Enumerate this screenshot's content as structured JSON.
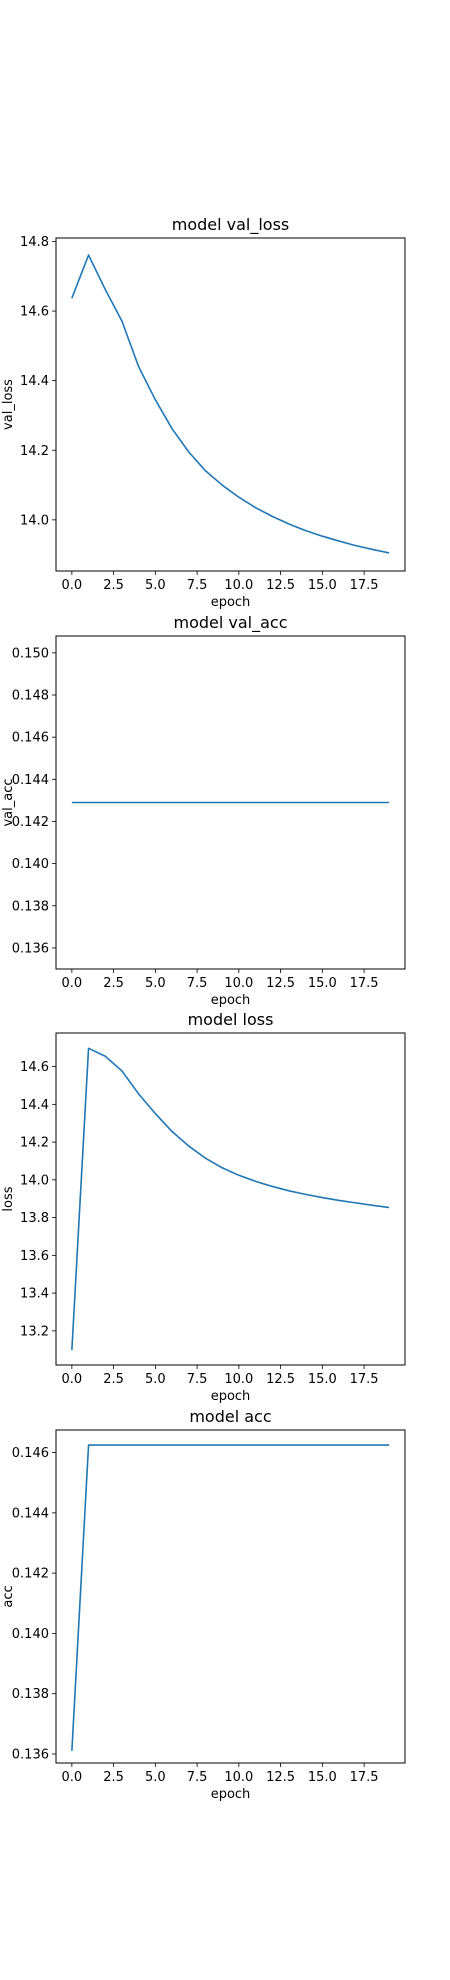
{
  "colors": {
    "series": "#1f77b4"
  },
  "chart_data": [
    {
      "type": "line",
      "title": "model val_loss",
      "xlabel": "epoch",
      "ylabel": "val_loss",
      "xlim": [
        -0.95,
        19.95
      ],
      "ylim": [
        13.853,
        14.81
      ],
      "xticks": [
        0,
        2.5,
        5,
        7.5,
        10,
        12.5,
        15,
        17.5
      ],
      "xtick_labels": [
        "0.0",
        "2.5",
        "5.0",
        "7.5",
        "10.0",
        "12.5",
        "15.0",
        "17.5"
      ],
      "yticks": [
        14.0,
        14.2,
        14.4,
        14.6,
        14.8
      ],
      "ytick_labels": [
        "14.0",
        "14.2",
        "14.4",
        "14.6",
        "14.8"
      ],
      "x": [
        0,
        1,
        2,
        3,
        4,
        5,
        6,
        7,
        8,
        9,
        10,
        11,
        12,
        13,
        14,
        15,
        16,
        17,
        18,
        19
      ],
      "series": [
        {
          "values": [
            14.637,
            14.761,
            14.662,
            14.571,
            14.44,
            14.345,
            14.262,
            14.195,
            14.141,
            14.1,
            14.065,
            14.035,
            14.01,
            13.988,
            13.969,
            13.953,
            13.939,
            13.926,
            13.915,
            13.905
          ]
        }
      ]
    },
    {
      "type": "line",
      "title": "model val_acc",
      "xlabel": "epoch",
      "ylabel": "val_acc",
      "xlim": [
        -0.95,
        19.95
      ],
      "ylim": [
        0.135,
        0.1508
      ],
      "xticks": [
        0,
        2.5,
        5,
        7.5,
        10,
        12.5,
        15,
        17.5
      ],
      "xtick_labels": [
        "0.0",
        "2.5",
        "5.0",
        "7.5",
        "10.0",
        "12.5",
        "15.0",
        "17.5"
      ],
      "yticks": [
        0.136,
        0.138,
        0.14,
        0.142,
        0.144,
        0.146,
        0.148,
        0.15
      ],
      "ytick_labels": [
        "0.136",
        "0.138",
        "0.140",
        "0.142",
        "0.144",
        "0.146",
        "0.148",
        "0.150"
      ],
      "x": [
        0,
        1,
        2,
        3,
        4,
        5,
        6,
        7,
        8,
        9,
        10,
        11,
        12,
        13,
        14,
        15,
        16,
        17,
        18,
        19
      ],
      "series": [
        {
          "values": [
            0.1429,
            0.1429,
            0.1429,
            0.1429,
            0.1429,
            0.1429,
            0.1429,
            0.1429,
            0.1429,
            0.1429,
            0.1429,
            0.1429,
            0.1429,
            0.1429,
            0.1429,
            0.1429,
            0.1429,
            0.1429,
            0.1429,
            0.1429
          ]
        }
      ]
    },
    {
      "type": "line",
      "title": "model loss",
      "xlabel": "epoch",
      "ylabel": "loss",
      "xlim": [
        -0.95,
        19.95
      ],
      "ylim": [
        13.019,
        14.778
      ],
      "xticks": [
        0,
        2.5,
        5,
        7.5,
        10,
        12.5,
        15,
        17.5
      ],
      "xtick_labels": [
        "0.0",
        "2.5",
        "5.0",
        "7.5",
        "10.0",
        "12.5",
        "15.0",
        "17.5"
      ],
      "yticks": [
        13.2,
        13.4,
        13.6,
        13.8,
        14.0,
        14.2,
        14.4,
        14.6
      ],
      "ytick_labels": [
        "13.2",
        "13.4",
        "13.6",
        "13.8",
        "14.0",
        "14.2",
        "14.4",
        "14.6"
      ],
      "x": [
        0,
        1,
        2,
        3,
        4,
        5,
        6,
        7,
        8,
        9,
        10,
        11,
        12,
        13,
        14,
        15,
        16,
        17,
        18,
        19
      ],
      "series": [
        {
          "values": [
            13.098,
            14.697,
            14.655,
            14.577,
            14.455,
            14.351,
            14.256,
            14.179,
            14.115,
            14.064,
            14.024,
            13.992,
            13.965,
            13.942,
            13.923,
            13.906,
            13.891,
            13.878,
            13.865,
            13.853
          ]
        }
      ]
    },
    {
      "type": "line",
      "title": "model acc",
      "xlabel": "epoch",
      "ylabel": "acc",
      "xlim": [
        -0.95,
        19.95
      ],
      "ylim": [
        0.1357,
        0.14675
      ],
      "xticks": [
        0,
        2.5,
        5,
        7.5,
        10,
        12.5,
        15,
        17.5
      ],
      "xtick_labels": [
        "0.0",
        "2.5",
        "5.0",
        "7.5",
        "10.0",
        "12.5",
        "15.0",
        "17.5"
      ],
      "yticks": [
        0.136,
        0.138,
        0.14,
        0.142,
        0.144,
        0.146
      ],
      "ytick_labels": [
        "0.136",
        "0.138",
        "0.140",
        "0.142",
        "0.144",
        "0.146"
      ],
      "x": [
        0,
        1,
        2,
        3,
        4,
        5,
        6,
        7,
        8,
        9,
        10,
        11,
        12,
        13,
        14,
        15,
        16,
        17,
        18,
        19
      ],
      "series": [
        {
          "values": [
            0.1361,
            0.14625,
            0.14625,
            0.14625,
            0.14625,
            0.14625,
            0.14625,
            0.14625,
            0.14625,
            0.14625,
            0.14625,
            0.14625,
            0.14625,
            0.14625,
            0.14625,
            0.14625,
            0.14625,
            0.14625,
            0.14625,
            0.14625
          ]
        }
      ]
    }
  ]
}
